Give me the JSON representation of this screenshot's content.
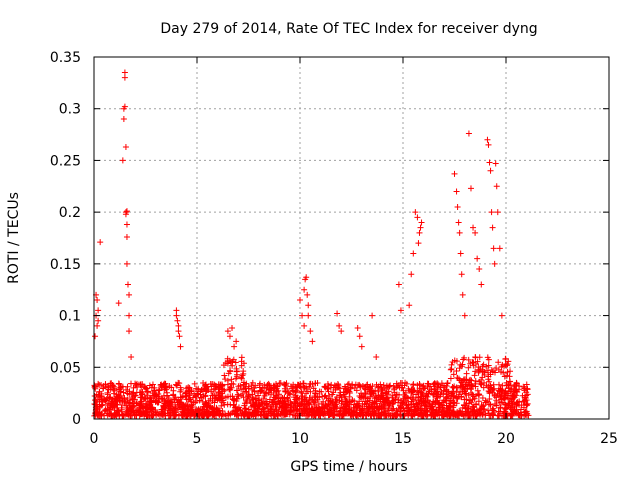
{
  "chart_data": {
    "type": "scatter",
    "title": "Day 279 of 2014, Rate Of TEC Index for receiver dyng",
    "xlabel": "GPS time / hours",
    "ylabel": "ROTI / TECUs",
    "xlim": [
      0,
      25
    ],
    "ylim": [
      0,
      0.35
    ],
    "xticks": [
      0,
      5,
      10,
      15,
      20,
      25
    ],
    "xtick_labels": [
      "0",
      "5",
      "10",
      "15",
      "20",
      "25"
    ],
    "yticks": [
      0,
      0.05,
      0.1,
      0.15,
      0.2,
      0.25,
      0.3,
      0.35
    ],
    "ytick_labels": [
      "0",
      "0.05",
      "0.1",
      "0.15",
      "0.2",
      "0.25",
      "0.3",
      "0.35"
    ],
    "grid": true,
    "marker": "+",
    "color": "#ff0000",
    "series": [
      {
        "x": [
          0.05,
          0.1,
          0.1,
          0.15,
          0.15,
          0.2,
          0.2,
          0.3,
          1.2,
          1.4,
          1.45,
          1.45,
          1.5,
          1.5,
          1.5,
          1.55,
          1.55,
          1.55,
          1.6,
          1.6,
          1.6,
          1.6,
          1.65,
          1.7,
          1.7,
          1.7,
          1.8,
          4.0,
          4.0,
          4.05,
          4.1,
          4.1,
          4.15,
          4.2,
          6.5,
          6.6,
          6.7,
          6.8,
          6.9,
          10.0,
          10.1,
          10.2,
          10.2,
          10.25,
          10.3,
          10.35,
          10.4,
          10.4,
          10.5,
          10.6,
          11.8,
          11.9,
          12.0,
          12.8,
          12.9,
          13.0,
          13.5,
          13.7,
          14.8,
          14.9,
          15.3,
          15.4,
          15.5,
          15.6,
          15.7,
          15.75,
          15.8,
          15.85,
          15.9,
          17.5,
          17.6,
          17.65,
          17.7,
          17.75,
          17.8,
          17.85,
          17.9,
          18.0,
          18.2,
          18.3,
          18.4,
          18.5,
          18.6,
          18.7,
          18.8,
          19.1,
          19.15,
          19.2,
          19.25,
          19.3,
          19.35,
          19.4,
          19.45,
          19.5,
          19.55,
          19.6,
          19.7,
          19.8
        ],
        "y": [
          0.08,
          0.12,
          0.1,
          0.115,
          0.09,
          0.105,
          0.095,
          0.171,
          0.112,
          0.25,
          0.3,
          0.29,
          0.335,
          0.33,
          0.302,
          0.263,
          0.2,
          0.198,
          0.201,
          0.188,
          0.176,
          0.15,
          0.13,
          0.12,
          0.1,
          0.085,
          0.06,
          0.105,
          0.1,
          0.095,
          0.09,
          0.085,
          0.08,
          0.07,
          0.085,
          0.08,
          0.088,
          0.07,
          0.075,
          0.115,
          0.1,
          0.09,
          0.125,
          0.135,
          0.137,
          0.12,
          0.11,
          0.1,
          0.085,
          0.075,
          0.102,
          0.09,
          0.085,
          0.088,
          0.08,
          0.07,
          0.1,
          0.06,
          0.13,
          0.105,
          0.11,
          0.14,
          0.16,
          0.2,
          0.195,
          0.17,
          0.18,
          0.185,
          0.19,
          0.237,
          0.22,
          0.205,
          0.19,
          0.18,
          0.16,
          0.14,
          0.12,
          0.1,
          0.276,
          0.223,
          0.185,
          0.18,
          0.155,
          0.145,
          0.13,
          0.27,
          0.265,
          0.248,
          0.24,
          0.2,
          0.185,
          0.165,
          0.15,
          0.247,
          0.225,
          0.2,
          0.165,
          0.1
        ]
      }
    ],
    "background_noise": {
      "x_range": [
        0,
        21.1
      ],
      "typical_y_range": [
        0.003,
        0.035
      ]
    }
  }
}
